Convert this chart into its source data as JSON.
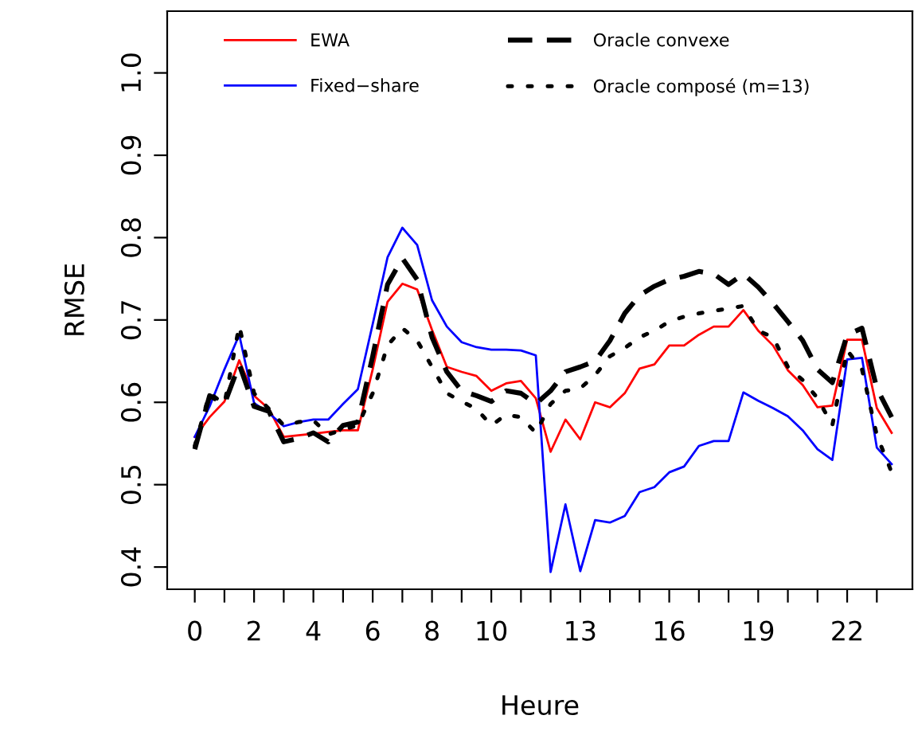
{
  "chart_data": {
    "type": "line",
    "xlabel": "Heure",
    "ylabel": "RMSE",
    "x": [
      0,
      0.5,
      1,
      1.5,
      2,
      2.5,
      3,
      3.5,
      4,
      4.5,
      5,
      5.5,
      6,
      6.5,
      7,
      7.5,
      8,
      8.5,
      9,
      9.5,
      10,
      10.5,
      11,
      11.5,
      12,
      12.5,
      13,
      13.5,
      14,
      14.5,
      15,
      15.5,
      16,
      16.5,
      17,
      17.5,
      18,
      18.5,
      19,
      19.5,
      20,
      20.5,
      21,
      21.5,
      22,
      22.5,
      23,
      23.5
    ],
    "xlim": [
      -0.93,
      24.2
    ],
    "ylim": [
      0.373,
      1.075
    ],
    "xticks": [
      0,
      {
        "value": 1,
        "label": null
      },
      2,
      {
        "value": 3,
        "label": null
      },
      4,
      {
        "value": 5,
        "label": null
      },
      6,
      {
        "value": 7,
        "label": null
      },
      8,
      {
        "value": 9,
        "label": null
      },
      10,
      {
        "value": 11,
        "label": null
      },
      {
        "value": 12,
        "label": null
      },
      13,
      {
        "value": 14,
        "label": null
      },
      {
        "value": 15,
        "label": null
      },
      16,
      {
        "value": 17,
        "label": null
      },
      {
        "value": 18,
        "label": null
      },
      19,
      {
        "value": 20,
        "label": null
      },
      {
        "value": 21,
        "label": null
      },
      22,
      {
        "value": 23,
        "label": null
      }
    ],
    "yticks": [
      0.4,
      0.5,
      0.6,
      0.7,
      0.8,
      0.9,
      {
        "value": 1,
        "label": "1.0"
      }
    ],
    "grid": false,
    "legend": "top",
    "marker": "none",
    "series": [
      {
        "name": "EWA",
        "color": "#ff0000",
        "line_style": "solid",
        "values": [
          0.558,
          0.582,
          0.601,
          0.651,
          0.608,
          0.592,
          0.558,
          0.56,
          0.562,
          0.564,
          0.566,
          0.566,
          0.64,
          0.722,
          0.744,
          0.737,
          0.688,
          0.643,
          0.637,
          0.632,
          0.614,
          0.623,
          0.626,
          0.605,
          0.54,
          0.579,
          0.555,
          0.6,
          0.594,
          0.611,
          0.641,
          0.646,
          0.669,
          0.669,
          0.682,
          0.692,
          0.692,
          0.712,
          0.687,
          0.669,
          0.639,
          0.621,
          0.594,
          0.596,
          0.676,
          0.676,
          0.593,
          0.563
        ]
      },
      {
        "name": "Fixed−share",
        "color": "#0000ff",
        "line_style": "solid",
        "values": [
          0.558,
          0.595,
          0.64,
          0.682,
          0.599,
          0.587,
          0.571,
          0.576,
          0.579,
          0.579,
          0.598,
          0.616,
          0.695,
          0.776,
          0.812,
          0.791,
          0.724,
          0.692,
          0.673,
          0.667,
          0.664,
          0.664,
          0.663,
          0.657,
          0.394,
          0.476,
          0.395,
          0.457,
          0.454,
          0.462,
          0.491,
          0.497,
          0.515,
          0.522,
          0.547,
          0.553,
          0.553,
          0.612,
          0.602,
          0.593,
          0.583,
          0.566,
          0.543,
          0.53,
          0.652,
          0.654,
          0.545,
          0.525
        ]
      },
      {
        "name": "Oracle convexe",
        "color": "#000000",
        "line_style": "dashed",
        "values": [
          0.543,
          0.608,
          0.598,
          0.646,
          0.595,
          0.589,
          0.552,
          0.556,
          0.563,
          0.552,
          0.572,
          0.576,
          0.656,
          0.743,
          0.775,
          0.749,
          0.679,
          0.637,
          0.614,
          0.608,
          0.601,
          0.614,
          0.611,
          0.598,
          0.614,
          0.637,
          0.643,
          0.65,
          0.675,
          0.708,
          0.73,
          0.741,
          0.749,
          0.753,
          0.759,
          0.756,
          0.743,
          0.756,
          0.74,
          0.72,
          0.698,
          0.675,
          0.64,
          0.624,
          0.682,
          0.69,
          0.617,
          0.582
        ]
      },
      {
        "name": "Oracle composé (m=13)",
        "color": "#000000",
        "line_style": "dotted",
        "values": [
          0.547,
          0.611,
          0.598,
          0.693,
          0.611,
          0.592,
          0.572,
          0.576,
          0.578,
          0.561,
          0.567,
          0.572,
          0.611,
          0.669,
          0.69,
          0.675,
          0.643,
          0.611,
          0.601,
          0.592,
          0.572,
          0.585,
          0.582,
          0.563,
          0.598,
          0.614,
          0.617,
          0.633,
          0.656,
          0.666,
          0.679,
          0.687,
          0.698,
          0.704,
          0.708,
          0.711,
          0.714,
          0.717,
          0.687,
          0.679,
          0.643,
          0.627,
          0.605,
          0.572,
          0.663,
          0.64,
          0.56,
          0.515
        ]
      }
    ]
  }
}
